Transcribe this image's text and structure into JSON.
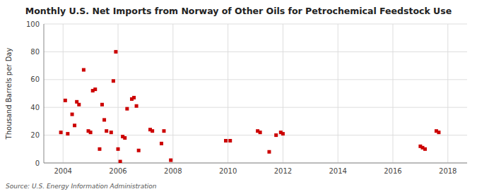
{
  "chart_data": {
    "type": "scatter",
    "title": "Monthly U.S. Net Imports from Norway of Other Oils for Petrochemical Feedstock Use",
    "ylabel": "Thousand Barrels per Day",
    "annotation": "Source: U.S. Energy Information Administration",
    "color": "#cc0000",
    "marker": "square",
    "grid": true,
    "xlim": [
      2003.3,
      2018.7
    ],
    "ylim": [
      0,
      100
    ],
    "xticks": [
      2004,
      2006,
      2008,
      2010,
      2012,
      2014,
      2016,
      2018
    ],
    "yticks": [
      0,
      20,
      40,
      60,
      80,
      100
    ],
    "x": [
      2003.92,
      2004.08,
      2004.17,
      2004.33,
      2004.42,
      2004.5,
      2004.58,
      2004.75,
      2004.92,
      2005.0,
      2005.08,
      2005.17,
      2005.33,
      2005.42,
      2005.5,
      2005.58,
      2005.75,
      2005.83,
      2005.92,
      2006.0,
      2006.08,
      2006.17,
      2006.25,
      2006.33,
      2006.5,
      2006.58,
      2006.67,
      2006.75,
      2007.17,
      2007.25,
      2007.58,
      2007.67,
      2007.92,
      2009.92,
      2010.08,
      2011.08,
      2011.17,
      2011.5,
      2011.75,
      2011.92,
      2012.0,
      2017.0,
      2017.08,
      2017.17,
      2017.58,
      2017.67
    ],
    "values": [
      22,
      45,
      21,
      35,
      27,
      44,
      42,
      67,
      23,
      22,
      52,
      53,
      10,
      42,
      31,
      23,
      22,
      59,
      80,
      10,
      1,
      19,
      18,
      39,
      46,
      47,
      41,
      9,
      24,
      23,
      14,
      23,
      2,
      16,
      16,
      23,
      22,
      8,
      20,
      22,
      21,
      12,
      11,
      10,
      23,
      22
    ]
  }
}
